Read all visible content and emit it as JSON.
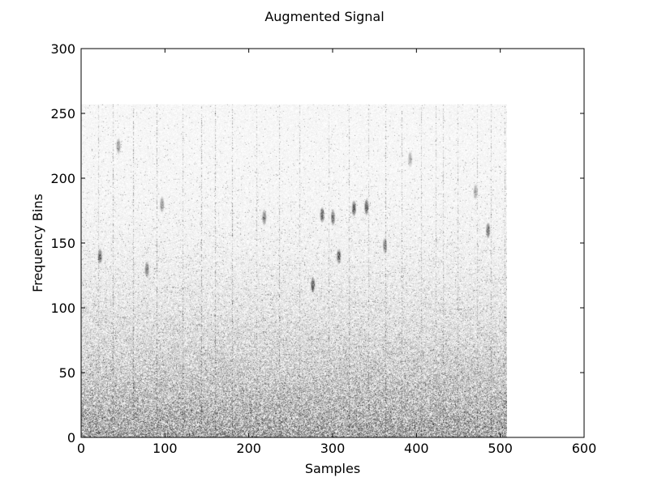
{
  "chart_data": {
    "type": "heatmap",
    "title": "Augmented Signal",
    "xlabel": "Samples",
    "ylabel": "Frequency Bins",
    "xlim": [
      0,
      600
    ],
    "ylim": [
      0,
      300
    ],
    "xticks": [
      "0",
      "100",
      "200",
      "300",
      "400",
      "500",
      "600"
    ],
    "yticks": [
      "0",
      "50",
      "100",
      "150",
      "200",
      "250",
      "300"
    ],
    "image_extent": {
      "x": [
        0,
        508
      ],
      "y": [
        0,
        257
      ]
    },
    "colormap": "gray_r",
    "grid": false,
    "features": {
      "vertical_streaks_x": [
        20,
        38,
        62,
        90,
        121,
        143,
        160,
        180,
        209,
        236,
        260,
        295,
        319,
        343,
        363,
        382,
        405,
        423,
        432,
        449,
        472,
        489,
        505
      ],
      "blobs": [
        {
          "x": 22,
          "y": 140,
          "strength": 0.7
        },
        {
          "x": 44,
          "y": 225,
          "strength": 0.5
        },
        {
          "x": 78,
          "y": 130,
          "strength": 0.6
        },
        {
          "x": 96,
          "y": 180,
          "strength": 0.5
        },
        {
          "x": 218,
          "y": 170,
          "strength": 0.6
        },
        {
          "x": 276,
          "y": 118,
          "strength": 0.7
        },
        {
          "x": 287,
          "y": 172,
          "strength": 0.7
        },
        {
          "x": 300,
          "y": 170,
          "strength": 0.7
        },
        {
          "x": 307,
          "y": 140,
          "strength": 0.7
        },
        {
          "x": 325,
          "y": 177,
          "strength": 0.8
        },
        {
          "x": 340,
          "y": 178,
          "strength": 0.8
        },
        {
          "x": 362,
          "y": 148,
          "strength": 0.6
        },
        {
          "x": 392,
          "y": 215,
          "strength": 0.4
        },
        {
          "x": 470,
          "y": 190,
          "strength": 0.4
        },
        {
          "x": 485,
          "y": 160,
          "strength": 0.7
        }
      ]
    }
  },
  "colors": {
    "background": "#ffffff",
    "axes": "#000000",
    "ink": "#000000"
  }
}
